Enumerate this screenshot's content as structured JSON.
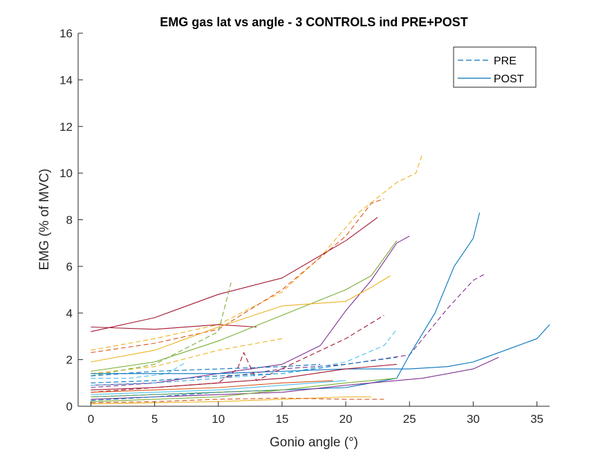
{
  "chart_data": {
    "type": "line",
    "title": "EMG gas lat vs angle - 3 CONTROLS ind PRE+POST",
    "xlabel": "Gonio angle (°)",
    "ylabel": "EMG (% of MVC)",
    "xlim": [
      -1,
      36
    ],
    "ylim": [
      0,
      16
    ],
    "xticks": [
      0,
      5,
      10,
      15,
      20,
      25,
      30,
      35
    ],
    "yticks": [
      0,
      2,
      4,
      6,
      8,
      10,
      12,
      14,
      16
    ],
    "grid": false,
    "legend": {
      "placement": "top-right",
      "entries": [
        {
          "label": "PRE",
          "style": "dashed",
          "color": "#0072BD"
        },
        {
          "label": "POST",
          "style": "solid",
          "color": "#0072BD"
        }
      ]
    },
    "series": [
      {
        "color": "#EDB120",
        "style": "dashed",
        "x": [
          0,
          5,
          10,
          15,
          18,
          21,
          24,
          25.5,
          26
        ],
        "y": [
          2.4,
          2.9,
          3.5,
          4.9,
          6.4,
          8.3,
          9.6,
          10.0,
          10.8
        ]
      },
      {
        "color": "#D95319",
        "style": "dashed",
        "x": [
          0,
          5,
          10,
          15,
          20,
          22,
          23
        ],
        "y": [
          2.3,
          2.7,
          3.3,
          5.0,
          7.3,
          8.7,
          8.9
        ]
      },
      {
        "color": "#A2142F",
        "style": "solid",
        "x": [
          0,
          5,
          10,
          15,
          20,
          22.5
        ],
        "y": [
          3.2,
          3.8,
          4.8,
          5.5,
          7.1,
          8.1
        ]
      },
      {
        "color": "#A2142F",
        "style": "solid",
        "x": [
          0,
          5,
          10,
          13
        ],
        "y": [
          3.4,
          3.3,
          3.5,
          3.4
        ]
      },
      {
        "color": "#7E2F8E",
        "style": "solid",
        "x": [
          0,
          5,
          10,
          15,
          18,
          20,
          22,
          24,
          25
        ],
        "y": [
          0.9,
          1.0,
          1.4,
          1.8,
          2.6,
          4.1,
          5.4,
          7.0,
          7.3
        ]
      },
      {
        "color": "#77AC30",
        "style": "solid",
        "x": [
          0,
          5,
          10,
          15,
          20,
          22,
          24
        ],
        "y": [
          1.5,
          1.9,
          2.8,
          3.9,
          5.0,
          5.6,
          7.1
        ]
      },
      {
        "color": "#EDB120",
        "style": "solid",
        "x": [
          0,
          5,
          10,
          15,
          20,
          22,
          23.5
        ],
        "y": [
          1.9,
          2.4,
          3.4,
          4.3,
          4.5,
          5.1,
          5.6
        ]
      },
      {
        "color": "#4DBEEE",
        "style": "dashed",
        "x": [
          0,
          3,
          6,
          7.5
        ],
        "y": [
          1.2,
          1.2,
          1.4,
          1.9
        ]
      },
      {
        "color": "#EDB120",
        "style": "dashed",
        "x": [
          0,
          5,
          10,
          15
        ],
        "y": [
          1.4,
          1.7,
          2.4,
          2.9
        ]
      },
      {
        "color": "#77AC30",
        "style": "dashed",
        "x": [
          0,
          5,
          10,
          11
        ],
        "y": [
          1.3,
          1.8,
          3.2,
          5.3
        ]
      },
      {
        "color": "#0072BD",
        "style": "dashed",
        "x": [
          0,
          5,
          10,
          15,
          18
        ],
        "y": [
          1.3,
          1.5,
          1.6,
          1.7,
          1.8
        ]
      },
      {
        "color": "#0072BD",
        "style": "solid",
        "x": [
          0,
          5,
          10,
          15,
          20,
          25,
          28,
          30,
          31,
          33,
          35,
          36
        ],
        "y": [
          1.4,
          1.4,
          1.4,
          1.5,
          1.6,
          1.6,
          1.7,
          1.9,
          2.1,
          2.5,
          2.9,
          3.5
        ]
      },
      {
        "color": "#7E2F8E",
        "style": "dashed",
        "x": [
          0,
          5,
          10,
          15,
          20,
          25,
          28,
          30,
          31
        ],
        "y": [
          0.8,
          1.0,
          1.2,
          1.6,
          1.8,
          2.2,
          4.2,
          5.4,
          5.7
        ]
      },
      {
        "color": "#0072BD",
        "style": "solid",
        "x": [
          0,
          10,
          20,
          24,
          25,
          27,
          28.5,
          30,
          30.5
        ],
        "y": [
          0.4,
          0.6,
          0.8,
          1.2,
          2.2,
          4.0,
          6.0,
          7.2,
          8.3
        ]
      },
      {
        "color": "#A2142F",
        "style": "dashed",
        "x": [
          0,
          5,
          10,
          11.5,
          12,
          13,
          20,
          23
        ],
        "y": [
          0.6,
          0.8,
          1.0,
          1.6,
          2.3,
          1.1,
          2.9,
          3.9
        ]
      },
      {
        "color": "#7E2F8E",
        "style": "solid",
        "x": [
          0,
          5,
          10,
          15,
          20,
          26,
          30,
          32
        ],
        "y": [
          0.3,
          0.4,
          0.5,
          0.6,
          0.9,
          1.2,
          1.6,
          2.1
        ]
      },
      {
        "color": "#77AC30",
        "style": "solid",
        "x": [
          0,
          5,
          10,
          15,
          20,
          24
        ],
        "y": [
          0.2,
          0.3,
          0.4,
          0.7,
          1.0,
          1.2
        ]
      },
      {
        "color": "#EDB120",
        "style": "solid",
        "x": [
          0,
          5,
          10,
          15,
          20,
          22
        ],
        "y": [
          0.1,
          0.15,
          0.2,
          0.3,
          0.4,
          0.4
        ]
      },
      {
        "color": "#D95319",
        "style": "dashed",
        "x": [
          0,
          5,
          10,
          15,
          20,
          23
        ],
        "y": [
          0.15,
          0.2,
          0.3,
          0.35,
          0.3,
          0.3
        ]
      },
      {
        "color": "#0072BD",
        "style": "dashed",
        "x": [
          0,
          5,
          10,
          15
        ],
        "y": [
          0.25,
          0.4,
          0.6,
          0.7
        ]
      },
      {
        "color": "#4DBEEE",
        "style": "solid",
        "x": [
          0,
          5,
          10,
          15,
          20
        ],
        "y": [
          0.5,
          0.6,
          0.7,
          0.9,
          1.1
        ]
      },
      {
        "color": "#D95319",
        "style": "solid",
        "x": [
          0,
          5,
          10,
          15,
          19
        ],
        "y": [
          0.6,
          0.7,
          0.8,
          1.0,
          1.1
        ]
      },
      {
        "color": "#A2142F",
        "style": "solid",
        "x": [
          0,
          5,
          10,
          15,
          20,
          24
        ],
        "y": [
          0.7,
          0.8,
          1.0,
          1.2,
          1.6,
          1.8
        ]
      },
      {
        "color": "#0072BD",
        "style": "dashed",
        "x": [
          0,
          5,
          10,
          15,
          20,
          24
        ],
        "y": [
          1.0,
          1.1,
          1.3,
          1.4,
          1.8,
          2.1
        ]
      },
      {
        "color": "#4DBEEE",
        "style": "dashed",
        "x": [
          0,
          5,
          10,
          15,
          20,
          23,
          24
        ],
        "y": [
          0.9,
          1.0,
          1.2,
          1.4,
          1.9,
          2.6,
          3.3
        ]
      },
      {
        "color": "#77AC30",
        "style": "dashed",
        "x": [
          0,
          5,
          10,
          15
        ],
        "y": [
          0.4,
          0.5,
          0.6,
          0.7
        ]
      }
    ]
  }
}
